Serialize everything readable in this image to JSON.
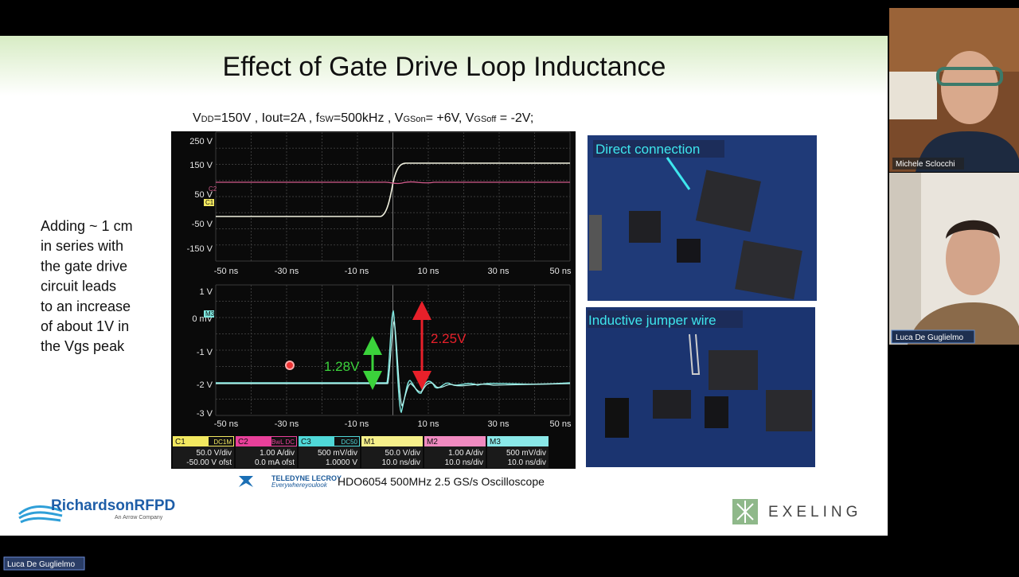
{
  "slide": {
    "title": "Effect of Gate Drive Loop Inductance",
    "conditions": [
      "V",
      "DD",
      "=150V , Iout=2A ,  f",
      "SW",
      "=500kHz , V",
      "GSon",
      "= +6V, V",
      "GSoff",
      " = -2V;"
    ],
    "notes": [
      "Adding ~ 1 cm",
      "in series with",
      "the gate drive",
      "circuit leads",
      "to an increase",
      "of about 1V in",
      "the Vgs peak"
    ],
    "scope": {
      "top_y_labels": [
        "250 V",
        "150 V",
        "50 V",
        "-50 V",
        "-150 V"
      ],
      "bottom_y_labels": [
        "1 V",
        "0 mV",
        "-1 V",
        "-2 V",
        "-3 V"
      ],
      "x_labels": [
        "-50 ns",
        "-30 ns",
        "-10 ns",
        "10 ns",
        "30 ns",
        "50 ns"
      ],
      "trace_tags": [
        "C2",
        "C1",
        "M3"
      ],
      "annotations": [
        "1.28V",
        "2.25V"
      ],
      "channels": [
        {
          "name": "C1",
          "tag": "DC1M",
          "line1": "50.0 V/div",
          "line2": "-50.00 V ofst"
        },
        {
          "name": "C2",
          "tag": "BwL DC",
          "line1": "1.00 A/div",
          "line2": "0.0 mA ofst"
        },
        {
          "name": "C3",
          "tag": "DC50",
          "line1": "500 mV/div",
          "line2": "1.0000 V"
        },
        {
          "name": "M1",
          "tag": "",
          "line1": "50.0 V/div",
          "line2": "10.0 ns/div"
        },
        {
          "name": "M2",
          "tag": "",
          "line1": "1.00 A/div",
          "line2": "10.0 ns/div"
        },
        {
          "name": "M3",
          "tag": "",
          "line1": "500 mV/div",
          "line2": "10.0 ns/div"
        }
      ]
    },
    "vendor": {
      "name": "TELEDYNE LECROY",
      "tagline": "Everywhereyoulook",
      "caption": "HDO6054 500MHz 2.5 GS/s Oscilloscope"
    },
    "photos": [
      "Direct connection",
      "Inductive jumper wire"
    ],
    "logos": {
      "left": "RichardsonRFPD",
      "left_sub": "An Arrow Company",
      "right": "EXELING"
    }
  },
  "participants": [
    "Michele Sclocchi",
    "Luca De Guglielmo"
  ],
  "active_speaker": "Luca De Guglielmo"
}
